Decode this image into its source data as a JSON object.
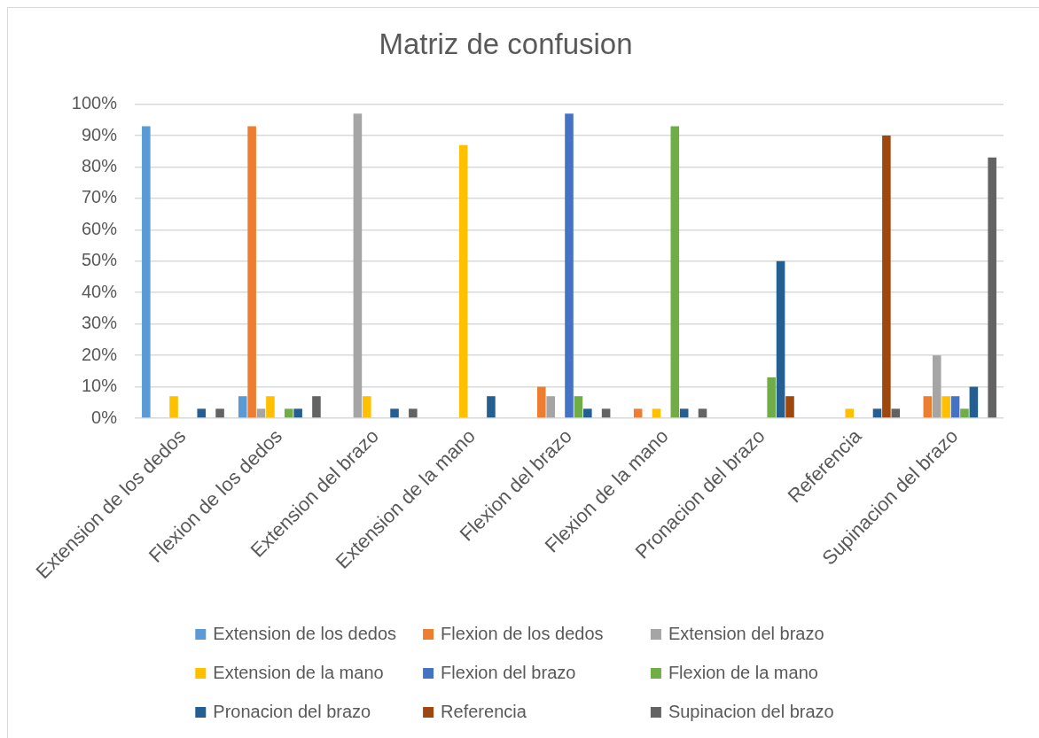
{
  "chart_data": {
    "type": "bar",
    "title": "Matriz de confusion",
    "categories": [
      "Extension de los dedos",
      "Flexion de los dedos",
      "Extension del brazo",
      "Extension de la mano",
      "Flexion del brazo",
      "Flexion de la mano",
      "Pronacion del brazo",
      "Referencia",
      "Supinacion del brazo"
    ],
    "series": [
      {
        "name": "Extension de los dedos",
        "color": "#5b9bd5",
        "values": [
          93,
          7,
          0,
          0,
          0,
          0,
          0,
          0,
          0
        ]
      },
      {
        "name": "Flexion de los dedos",
        "color": "#ed7d31",
        "values": [
          0,
          93,
          0,
          0,
          10,
          3,
          0,
          0,
          7
        ]
      },
      {
        "name": "Extension del brazo",
        "color": "#a5a5a5",
        "values": [
          0,
          3,
          97,
          0,
          7,
          0,
          0,
          0,
          20
        ]
      },
      {
        "name": "Extension de la mano",
        "color": "#ffc000",
        "values": [
          7,
          7,
          7,
          87,
          0,
          3,
          0,
          3,
          7
        ]
      },
      {
        "name": "Flexion del brazo",
        "color": "#4472c4",
        "values": [
          0,
          0,
          0,
          0,
          97,
          0,
          0,
          0,
          7
        ]
      },
      {
        "name": "Flexion de la mano",
        "color": "#70ad47",
        "values": [
          0,
          3,
          0,
          0,
          7,
          93,
          13,
          0,
          3
        ]
      },
      {
        "name": "Pronacion del brazo",
        "color": "#255e91",
        "values": [
          3,
          3,
          3,
          7,
          3,
          3,
          50,
          3,
          10
        ]
      },
      {
        "name": "Referencia",
        "color": "#9e480e",
        "values": [
          0,
          0,
          0,
          0,
          0,
          0,
          7,
          90,
          0
        ]
      },
      {
        "name": "Supinacion del brazo",
        "color": "#636363",
        "values": [
          3,
          7,
          3,
          0,
          3,
          3,
          0,
          3,
          83
        ]
      }
    ],
    "ylim": [
      0,
      100
    ],
    "yticks": [
      {
        "value": 0,
        "label": "0%"
      },
      {
        "value": 10,
        "label": "10%"
      },
      {
        "value": 20,
        "label": "20%"
      },
      {
        "value": 30,
        "label": "30%"
      },
      {
        "value": 40,
        "label": "40%"
      },
      {
        "value": 50,
        "label": "50%"
      },
      {
        "value": 60,
        "label": "60%"
      },
      {
        "value": 70,
        "label": "70%"
      },
      {
        "value": 80,
        "label": "80%"
      },
      {
        "value": 90,
        "label": "90%"
      },
      {
        "value": 100,
        "label": "100%"
      }
    ],
    "grid": "y",
    "legend": "bottom"
  }
}
